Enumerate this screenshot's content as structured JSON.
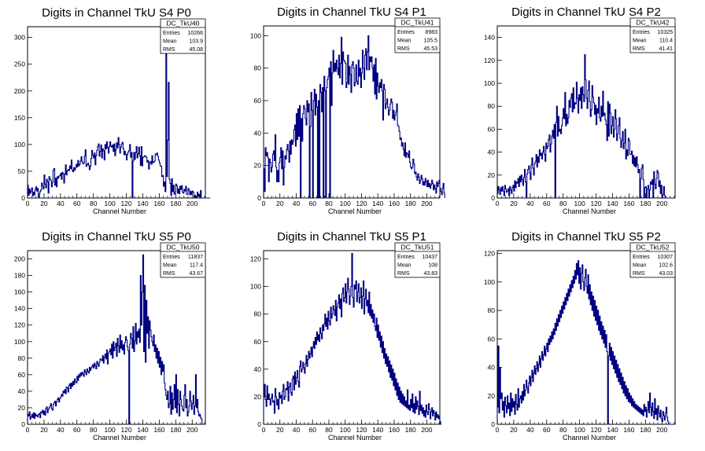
{
  "page": {
    "background": "#ffffff",
    "line_color": "#000080"
  },
  "chart_data": [
    {
      "type": "histogram",
      "title": "Digits in Channel TkU S4 P0",
      "xlabel": "Channel Number",
      "xlim": [
        0,
        216
      ],
      "ylim": [
        0,
        320
      ],
      "xticks": [
        0,
        20,
        40,
        60,
        80,
        100,
        120,
        140,
        160,
        180,
        200
      ],
      "yticks": [
        0,
        50,
        100,
        150,
        200,
        250,
        300
      ],
      "stats": {
        "name": "DC_TkU40",
        "Entries": "10266",
        "Mean": "103.9",
        "RMS": "45.08"
      },
      "bin_width": 1,
      "values": [
        24,
        5,
        17,
        9,
        13,
        19,
        4,
        11,
        6,
        16,
        21,
        13,
        18,
        2,
        7,
        12,
        15,
        28,
        22,
        17,
        43,
        26,
        19,
        35,
        30,
        9,
        40,
        35,
        33,
        21,
        29,
        52,
        55,
        24,
        37,
        21,
        40,
        37,
        41,
        42,
        46,
        35,
        48,
        45,
        28,
        45,
        62,
        43,
        51,
        53,
        51,
        60,
        55,
        71,
        52,
        49,
        57,
        52,
        56,
        63,
        58,
        70,
        60,
        63,
        69,
        77,
        68,
        64,
        65,
        78,
        90,
        59,
        62,
        65,
        61,
        53,
        59,
        74,
        89,
        80,
        75,
        84,
        62,
        79,
        89,
        96,
        101,
        78,
        87,
        99,
        75,
        92,
        88,
        71,
        100,
        92,
        105,
        94,
        84,
        96,
        105,
        97,
        95,
        99,
        87,
        101,
        79,
        90,
        103,
        94,
        113,
        100,
        84,
        95,
        101,
        104,
        92,
        81,
        87,
        81,
        71,
        82,
        86,
        89,
        100,
        76,
        85,
        0,
        69,
        85,
        72,
        85,
        96,
        75,
        83,
        95,
        79,
        61,
        96,
        60,
        76,
        77,
        79,
        78,
        76,
        67,
        70,
        54,
        66,
        68,
        63,
        79,
        66,
        67,
        69,
        82,
        81,
        84,
        78,
        71,
        66,
        60,
        59,
        40,
        42,
        22,
        30,
        12,
        297,
        40,
        108,
        216,
        35,
        27,
        5,
        36,
        12,
        24,
        7,
        11,
        26,
        23,
        9,
        17,
        8,
        22,
        16,
        23,
        11,
        9,
        16,
        13,
        22,
        7,
        7,
        18,
        14,
        6,
        12,
        7,
        13,
        11,
        0,
        5,
        1,
        2,
        11,
        3,
        7,
        2,
        14,
        0,
        0,
        0,
        0,
        0,
        0,
        0,
        0,
        0,
        0,
        0
      ]
    },
    {
      "type": "histogram",
      "title": "Digits in Channel TkU S4 P1",
      "xlabel": "Channel Number",
      "xlim": [
        0,
        216
      ],
      "ylim": [
        0,
        106
      ],
      "xticks": [
        0,
        20,
        40,
        60,
        80,
        100,
        120,
        140,
        160,
        180,
        200
      ],
      "yticks": [
        0,
        20,
        40,
        60,
        80,
        100
      ],
      "stats": {
        "name": "DC_TkU41",
        "Entries": "8983",
        "Mean": "105.5",
        "RMS": "45.53"
      },
      "bin_width": 1,
      "values": [
        18,
        4,
        31,
        26,
        28,
        25,
        10,
        24,
        22,
        16,
        19,
        27,
        29,
        23,
        39,
        19,
        10,
        17,
        10,
        22,
        25,
        31,
        18,
        29,
        8,
        19,
        26,
        24,
        30,
        33,
        29,
        22,
        35,
        27,
        36,
        33,
        35,
        42,
        45,
        32,
        52,
        36,
        55,
        38,
        57,
        0,
        49,
        35,
        52,
        57,
        55,
        49,
        45,
        60,
        53,
        58,
        0,
        44,
        65,
        54,
        0,
        60,
        67,
        51,
        64,
        56,
        0,
        60,
        0,
        70,
        65,
        53,
        68,
        0,
        75,
        66,
        0,
        68,
        73,
        75,
        80,
        0,
        84,
        57,
        77,
        91,
        78,
        83,
        78,
        85,
        80,
        76,
        88,
        74,
        83,
        99,
        70,
        90,
        85,
        84,
        83,
        68,
        71,
        88,
        70,
        81,
        76,
        65,
        82,
        84,
        80,
        69,
        71,
        82,
        72,
        70,
        85,
        75,
        80,
        68,
        77,
        91,
        80,
        73,
        88,
        92,
        79,
        90,
        100,
        79,
        87,
        84,
        87,
        80,
        72,
        82,
        64,
        86,
        61,
        77,
        69,
        65,
        71,
        68,
        73,
        66,
        48,
        70,
        67,
        55,
        58,
        61,
        56,
        51,
        54,
        58,
        61,
        59,
        49,
        54,
        48,
        51,
        53,
        58,
        45,
        44,
        41,
        36,
        37,
        32,
        34,
        30,
        26,
        34,
        25,
        28,
        27,
        25,
        29,
        22,
        19,
        18,
        19,
        24,
        21,
        15,
        16,
        13,
        11,
        15,
        13,
        9,
        11,
        14,
        12,
        8,
        10,
        8,
        12,
        10,
        7,
        11,
        7,
        9,
        6,
        8,
        11,
        9,
        5,
        8,
        6,
        3,
        10,
        7,
        9,
        11,
        6,
        4,
        2,
        6,
        9,
        3
      ]
    },
    {
      "type": "histogram",
      "title": "Digits in Channel TkU S4 P2",
      "xlabel": "Channel Number",
      "xlim": [
        0,
        216
      ],
      "ylim": [
        0,
        150
      ],
      "xticks": [
        0,
        20,
        40,
        60,
        80,
        100,
        120,
        140,
        160,
        180,
        200
      ],
      "yticks": [
        0,
        20,
        40,
        60,
        80,
        100,
        120,
        140
      ],
      "stats": {
        "name": "DC_TkU42",
        "Entries": "10325",
        "Mean": "110.4",
        "RMS": "41.41"
      },
      "bin_width": 1,
      "values": [
        4,
        10,
        7,
        3,
        9,
        6,
        10,
        6,
        2,
        11,
        8,
        5,
        6,
        8,
        2,
        10,
        7,
        4,
        9,
        11,
        6,
        15,
        9,
        14,
        13,
        17,
        10,
        19,
        14,
        20,
        16,
        11,
        18,
        25,
        14,
        0,
        21,
        25,
        28,
        22,
        16,
        29,
        35,
        26,
        20,
        30,
        32,
        38,
        27,
        36,
        31,
        42,
        37,
        39,
        34,
        40,
        45,
        38,
        32,
        48,
        43,
        45,
        51,
        55,
        40,
        47,
        54,
        59,
        52,
        64,
        0,
        66,
        80,
        54,
        71,
        58,
        60,
        56,
        63,
        70,
        78,
        69,
        92,
        63,
        73,
        65,
        70,
        85,
        79,
        87,
        91,
        75,
        96,
        78,
        83,
        82,
        101,
        87,
        74,
        90,
        85,
        96,
        78,
        97,
        90,
        84,
        125,
        103,
        87,
        78,
        94,
        102,
        84,
        71,
        77,
        98,
        88,
        83,
        73,
        81,
        64,
        78,
        74,
        88,
        70,
        67,
        80,
        71,
        93,
        72,
        74,
        68,
        64,
        50,
        84,
        54,
        82,
        74,
        56,
        63,
        71,
        53,
        60,
        77,
        69,
        50,
        56,
        63,
        70,
        52,
        44,
        50,
        58,
        43,
        48,
        60,
        34,
        42,
        37,
        52,
        50,
        38,
        38,
        41,
        30,
        37,
        28,
        35,
        27,
        36,
        29,
        22,
        25,
        0,
        17,
        26,
        29,
        16,
        0,
        9,
        10,
        0,
        8,
        11,
        0,
        7,
        14,
        12,
        16,
        0,
        23,
        12,
        8,
        17,
        24,
        22,
        10,
        15,
        4,
        11,
        0,
        3,
        10,
        2,
        0,
        0,
        0,
        0,
        0,
        0,
        0,
        0,
        0,
        0,
        0,
        0
      ]
    },
    {
      "type": "histogram",
      "title": "Digits in Channel TkU S5 P0",
      "xlabel": "Channel Number",
      "xlim": [
        0,
        216
      ],
      "ylim": [
        0,
        210
      ],
      "xticks": [
        0,
        20,
        40,
        60,
        80,
        100,
        120,
        140,
        160,
        180,
        200
      ],
      "yticks": [
        0,
        20,
        40,
        60,
        80,
        100,
        120,
        140,
        160,
        180,
        200
      ],
      "stats": {
        "name": "DC_TkU50",
        "Entries": "11837",
        "Mean": "117.4",
        "RMS": "43.67"
      },
      "bin_width": 1,
      "values": [
        12,
        10,
        15,
        6,
        9,
        12,
        8,
        14,
        7,
        13,
        10,
        11,
        9,
        12,
        13,
        8,
        15,
        14,
        17,
        12,
        16,
        11,
        19,
        21,
        14,
        18,
        20,
        22,
        25,
        19,
        17,
        24,
        26,
        28,
        22,
        27,
        30,
        32,
        27,
        31,
        33,
        36,
        34,
        40,
        38,
        42,
        37,
        45,
        44,
        39,
        47,
        49,
        43,
        50,
        46,
        52,
        48,
        55,
        51,
        50,
        58,
        53,
        60,
        57,
        62,
        59,
        63,
        61,
        58,
        66,
        63,
        60,
        67,
        64,
        62,
        69,
        65,
        68,
        70,
        72,
        68,
        74,
        71,
        67,
        76,
        73,
        70,
        75,
        79,
        78,
        77,
        83,
        74,
        81,
        85,
        79,
        90,
        73,
        86,
        88,
        91,
        84,
        97,
        80,
        100,
        89,
        93,
        98,
        82,
        104,
        95,
        87,
        108,
        92,
        101,
        90,
        96,
        85,
        99,
        106,
        102,
        94,
        89,
        0,
        97,
        110,
        104,
        92,
        118,
        88,
        101,
        122,
        97,
        112,
        105,
        115,
        99,
        180,
        120,
        160,
        205,
        88,
        168,
        75,
        150,
        110,
        130,
        92,
        125,
        114,
        106,
        100,
        95,
        108,
        88,
        96,
        80,
        92,
        74,
        88,
        69,
        81,
        60,
        76,
        64,
        72,
        50,
        42,
        35,
        30,
        40,
        20,
        25,
        46,
        12,
        38,
        18,
        30,
        48,
        20,
        60,
        14,
        42,
        24,
        10,
        40,
        30,
        22,
        18,
        16,
        35,
        48,
        20,
        30,
        10,
        15,
        22,
        40,
        28,
        18,
        25,
        35,
        12,
        22,
        60,
        20,
        30,
        15,
        10,
        12,
        8,
        6,
        0,
        0,
        0,
        0
      ]
    },
    {
      "type": "histogram",
      "title": "Digits in Channel TkU S5 P1",
      "xlabel": "Channel Number",
      "xlim": [
        0,
        216
      ],
      "ylim": [
        0,
        126
      ],
      "xticks": [
        0,
        20,
        40,
        60,
        80,
        100,
        120,
        140,
        160,
        180,
        200
      ],
      "yticks": [
        0,
        20,
        40,
        60,
        80,
        100,
        120
      ],
      "stats": {
        "name": "DC_TkU51",
        "Entries": "10437",
        "Mean": "108",
        "RMS": "43.83"
      },
      "bin_width": 1,
      "values": [
        20,
        29,
        18,
        13,
        28,
        18,
        22,
        18,
        14,
        19,
        22,
        16,
        17,
        8,
        26,
        20,
        14,
        18,
        11,
        23,
        19,
        21,
        15,
        24,
        29,
        18,
        20,
        26,
        25,
        31,
        17,
        27,
        30,
        23,
        21,
        33,
        35,
        25,
        38,
        29,
        34,
        39,
        31,
        27,
        42,
        46,
        38,
        40,
        45,
        41,
        37,
        44,
        50,
        42,
        47,
        53,
        48,
        51,
        56,
        49,
        56,
        60,
        55,
        63,
        58,
        67,
        61,
        65,
        60,
        70,
        66,
        62,
        72,
        68,
        73,
        80,
        71,
        77,
        69,
        82,
        75,
        72,
        85,
        77,
        80,
        86,
        83,
        79,
        90,
        75,
        85,
        88,
        94,
        84,
        91,
        78,
        95,
        99,
        89,
        92,
        102,
        88,
        96,
        106,
        98,
        87,
        93,
        100,
        124,
        92,
        85,
        101,
        98,
        104,
        89,
        96,
        102,
        88,
        92,
        99,
        84,
        93,
        104,
        80,
        91,
        98,
        86,
        90,
        81,
        96,
        79,
        87,
        77,
        83,
        74,
        80,
        71,
        68,
        77,
        63,
        72,
        61,
        67,
        56,
        64,
        52,
        60,
        48,
        55,
        44,
        51,
        42,
        49,
        38,
        46,
        34,
        43,
        32,
        40,
        28,
        37,
        25,
        33,
        21,
        30,
        18,
        27,
        16,
        24,
        15,
        22,
        14,
        20,
        13,
        17,
        12,
        25,
        11,
        14,
        10,
        18,
        12,
        22,
        9,
        15,
        8,
        20,
        11,
        17,
        13,
        7,
        24,
        10,
        14,
        8,
        12,
        6,
        10,
        5,
        14,
        9,
        7,
        15,
        11,
        4,
        9,
        12,
        6,
        10,
        8,
        3,
        9,
        5,
        7,
        4,
        6,
        2,
        0
      ]
    },
    {
      "type": "histogram",
      "title": "Digits in Channel TkU S5 P2",
      "xlabel": "Channel Number",
      "xlim": [
        0,
        216
      ],
      "ylim": [
        0,
        122
      ],
      "xticks": [
        0,
        20,
        40,
        60,
        80,
        100,
        120,
        140,
        160,
        180,
        200
      ],
      "yticks": [
        0,
        20,
        40,
        60,
        80,
        100,
        120
      ],
      "stats": {
        "name": "DC_TkU52",
        "Entries": "10307",
        "Mean": "102.6",
        "RMS": "43.03"
      },
      "bin_width": 1,
      "values": [
        12,
        55,
        8,
        40,
        18,
        22,
        10,
        16,
        5,
        19,
        13,
        8,
        20,
        11,
        15,
        6,
        22,
        9,
        18,
        12,
        16,
        7,
        21,
        14,
        10,
        25,
        12,
        18,
        20,
        15,
        23,
        17,
        28,
        20,
        24,
        31,
        26,
        22,
        29,
        34,
        27,
        33,
        38,
        30,
        36,
        41,
        35,
        39,
        44,
        37,
        42,
        48,
        40,
        46,
        51,
        45,
        49,
        55,
        48,
        53,
        57,
        51,
        60,
        56,
        62,
        58,
        65,
        60,
        67,
        63,
        71,
        66,
        74,
        69,
        77,
        72,
        80,
        75,
        83,
        78,
        86,
        81,
        89,
        84,
        92,
        87,
        95,
        90,
        98,
        93,
        101,
        96,
        104,
        99,
        108,
        102,
        113,
        105,
        115,
        99,
        110,
        95,
        106,
        112,
        100,
        94,
        103,
        109,
        97,
        92,
        105,
        88,
        98,
        84,
        93,
        80,
        90,
        76,
        87,
        73,
        83,
        70,
        80,
        66,
        76,
        63,
        72,
        60,
        69,
        57,
        66,
        54,
        63,
        51,
        0,
        48,
        57,
        45,
        54,
        42,
        51,
        39,
        48,
        36,
        45,
        33,
        42,
        30,
        39,
        28,
        36,
        25,
        33,
        22,
        30,
        20,
        27,
        18,
        25,
        16,
        22,
        15,
        20,
        13,
        18,
        12,
        16,
        11,
        14,
        10,
        13,
        9,
        12,
        8,
        11,
        7,
        10,
        6,
        14,
        9,
        12,
        5,
        10,
        16,
        8,
        22,
        12,
        6,
        15,
        9,
        4,
        18,
        7,
        11,
        3,
        13,
        8,
        5,
        10,
        4,
        2,
        9,
        6,
        3,
        8,
        12,
        5,
        2,
        0,
        0,
        0,
        0,
        0,
        0,
        0,
        0
      ]
    }
  ]
}
